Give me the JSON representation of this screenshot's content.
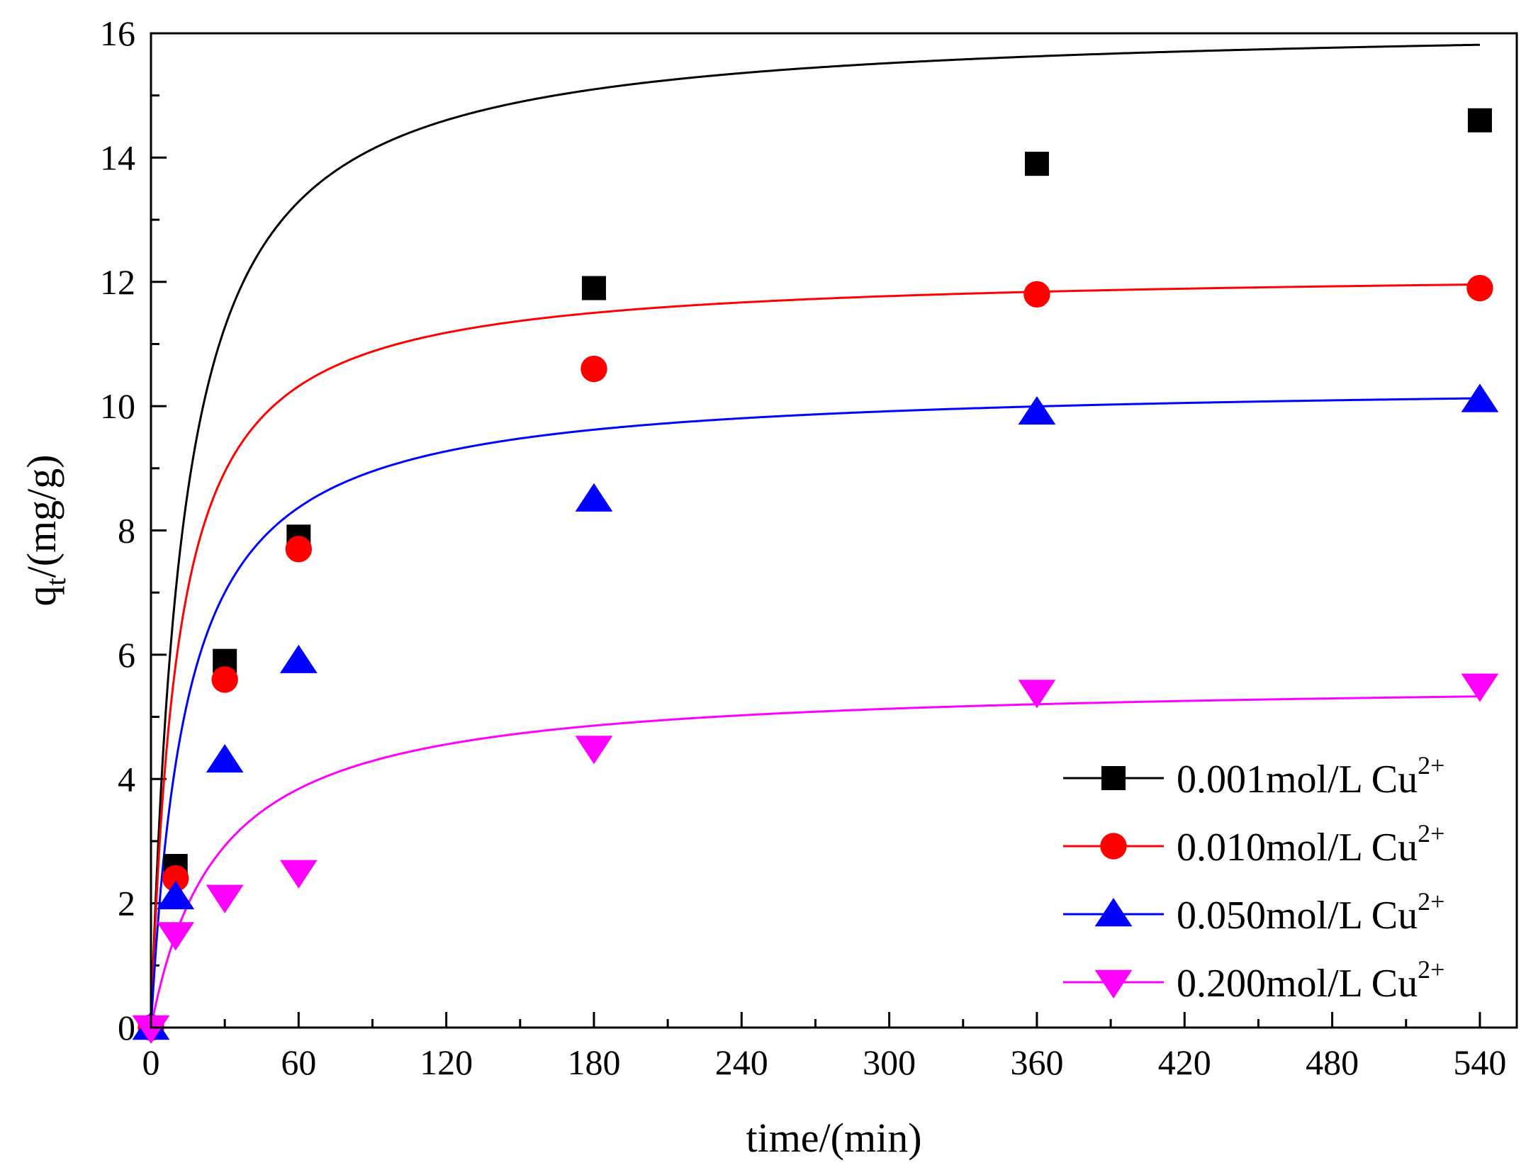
{
  "chart_data": {
    "type": "scatter",
    "xlabel": "time/(min)",
    "ylabel_main": "q",
    "ylabel_sub": "t",
    "ylabel_rest": "/(mg/g)",
    "xlim": [
      0,
      555
    ],
    "ylim": [
      0,
      16
    ],
    "x_major_ticks": [
      0,
      60,
      120,
      180,
      240,
      300,
      360,
      420,
      480,
      540
    ],
    "x_tick_labels": [
      "0",
      "60",
      "120",
      "180",
      "240",
      "300",
      "360",
      "420",
      "480",
      "540"
    ],
    "y_major_ticks": [
      0,
      2,
      4,
      6,
      8,
      10,
      12,
      14,
      16
    ],
    "y_tick_labels": [
      "0",
      "2",
      "4",
      "6",
      "8",
      "10",
      "12",
      "14",
      "16"
    ],
    "legend_position": "bottom-right",
    "fit_lines": true,
    "x": [
      0,
      10,
      30,
      60,
      180,
      360,
      540
    ],
    "series": [
      {
        "name": "0.001mol/L Cu",
        "sup": "2+",
        "color": "#000000",
        "marker": "square",
        "values": [
          0,
          2.6,
          5.9,
          7.9,
          11.9,
          13.9,
          14.6
        ],
        "fit": {
          "qe": 16.2,
          "k": 0.0047
        }
      },
      {
        "name": "0.010mol/L Cu",
        "sup": "2+",
        "color": "#ff0000",
        "marker": "circle",
        "values": [
          0,
          2.4,
          5.6,
          7.7,
          10.6,
          11.8,
          11.9
        ],
        "fit": {
          "qe": 12.2,
          "k": 0.0075
        }
      },
      {
        "name": "0.050mol/L Cu",
        "sup": "2+",
        "color": "#0000ff",
        "marker": "triangle-up",
        "values": [
          0,
          2.1,
          4.3,
          5.9,
          8.5,
          9.9,
          10.1
        ],
        "fit": {
          "qe": 10.4,
          "k": 0.0066
        }
      },
      {
        "name": "0.200mol/L Cu",
        "sup": "2+",
        "color": "#ff00ff",
        "marker": "triangle-down",
        "values": [
          0,
          1.5,
          2.1,
          2.5,
          4.5,
          5.4,
          5.5
        ],
        "fit": {
          "qe": 5.6,
          "k": 0.0065
        }
      }
    ]
  }
}
